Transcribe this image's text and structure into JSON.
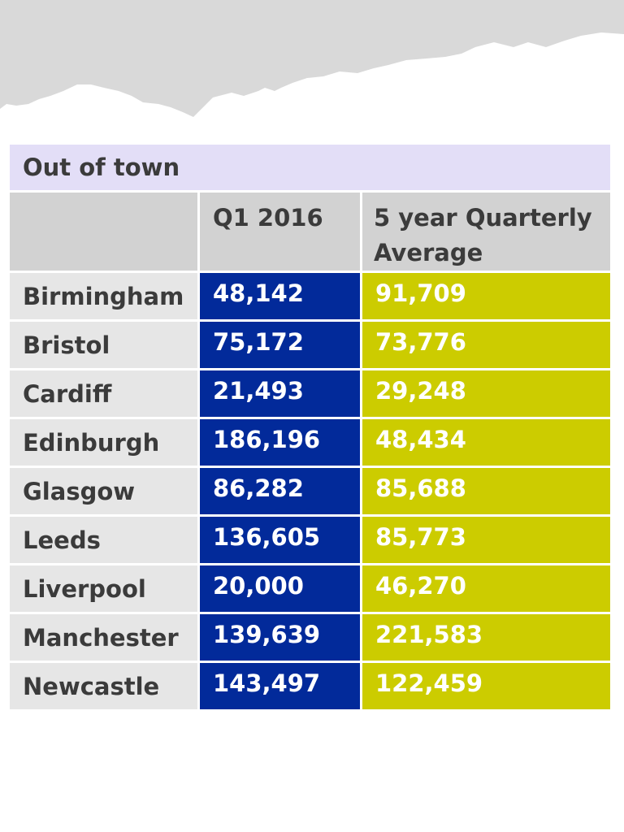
{
  "colors": {
    "title_bg": "#e3def7",
    "header_bg": "#d2d2d2",
    "city_bg": "#e6e6e6",
    "q1_bg": "#022a9a",
    "avg_bg": "#cccc00",
    "map_gray": "#d9d9d9"
  },
  "chart_data": {
    "type": "table",
    "title": "Out of town",
    "columns": [
      "",
      "Q1 2016",
      "5 year Quarterly Average"
    ],
    "rows": [
      {
        "city": "Birmingham",
        "q1": "48,142",
        "avg": "91,709"
      },
      {
        "city": "Bristol",
        "q1": "75,172",
        "avg": "73,776"
      },
      {
        "city": "Cardiff",
        "q1": "21,493",
        "avg": "29,248"
      },
      {
        "city": "Edinburgh",
        "q1": "186,196",
        "avg": "48,434"
      },
      {
        "city": "Glasgow",
        "q1": "86,282",
        "avg": "85,688"
      },
      {
        "city": "Leeds",
        "q1": "136,605",
        "avg": "85,773"
      },
      {
        "city": "Liverpool",
        "q1": "20,000",
        "avg": "46,270"
      },
      {
        "city": "Manchester",
        "q1": "139,639",
        "avg": "221,583"
      },
      {
        "city": "Newcastle",
        "q1": "143,497",
        "avg": "122,459"
      }
    ]
  }
}
